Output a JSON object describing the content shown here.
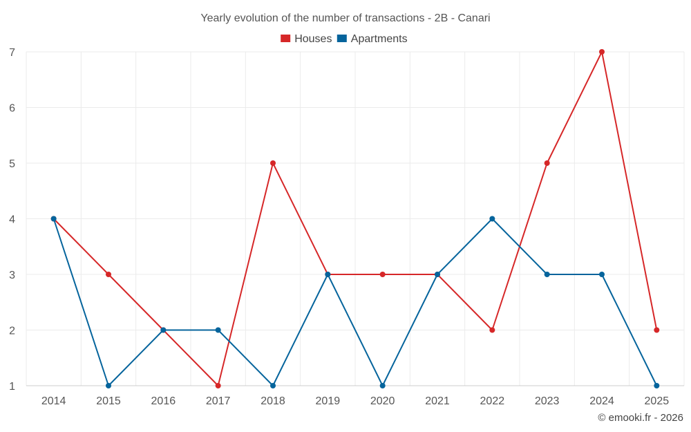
{
  "chart_data": {
    "type": "line",
    "title": "Yearly evolution of the number of transactions - 2B - Canari",
    "categories": [
      "2014",
      "2015",
      "2016",
      "2017",
      "2018",
      "2019",
      "2020",
      "2021",
      "2022",
      "2023",
      "2024",
      "2025"
    ],
    "series": [
      {
        "name": "Houses",
        "color": "#d62728",
        "values": [
          4,
          3,
          2,
          1,
          5,
          3,
          3,
          3,
          2,
          5,
          7,
          2
        ]
      },
      {
        "name": "Apartments",
        "color": "#05649c",
        "values": [
          4,
          1,
          2,
          2,
          1,
          3,
          1,
          3,
          4,
          3,
          3,
          1
        ]
      }
    ],
    "yticks": [
      1,
      2,
      3,
      4,
      5,
      6,
      7
    ],
    "ylim": [
      1,
      7
    ],
    "xlabel": "",
    "ylabel": "",
    "grid": true,
    "legend_position": "top-center"
  },
  "credit": "© emooki.fr - 2026"
}
